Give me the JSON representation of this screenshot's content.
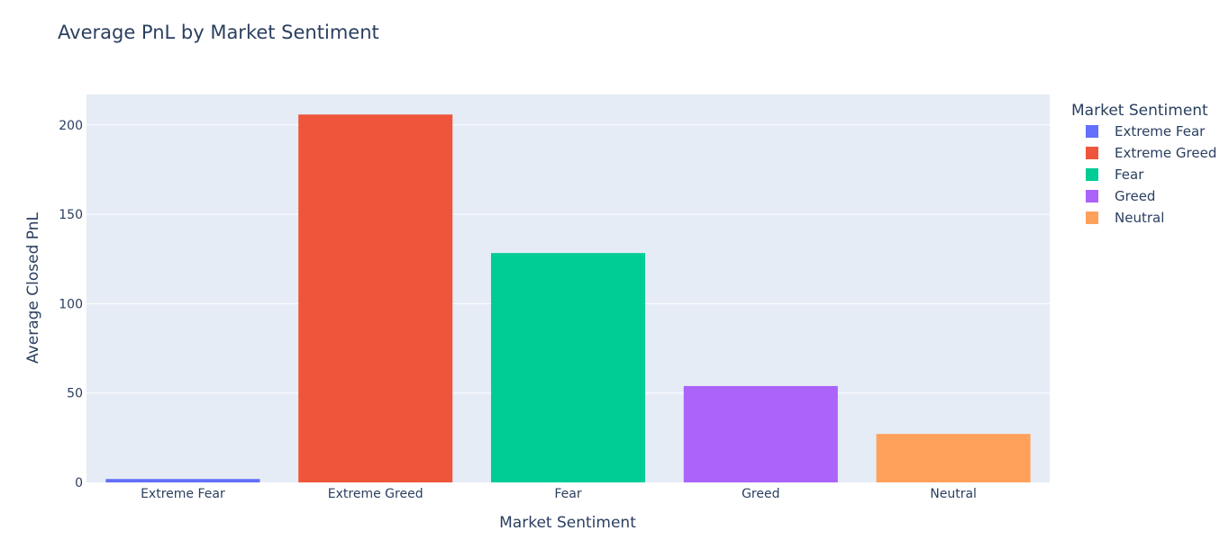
{
  "chart_data": {
    "type": "bar",
    "title": "Average PnL by Market Sentiment",
    "xlabel": "Market Sentiment",
    "ylabel": "Average Closed PnL",
    "categories": [
      "Extreme Fear",
      "Extreme Greed",
      "Fear",
      "Greed",
      "Neutral"
    ],
    "values": [
      1.9,
      205.8,
      128.3,
      53.9,
      27.1
    ],
    "colors": [
      "#636efa",
      "#ef553b",
      "#00cc96",
      "#ab63fa",
      "#ffa15a"
    ],
    "ylim": [
      0,
      217
    ],
    "yticks": [
      0,
      50,
      100,
      150,
      200
    ],
    "grid": true,
    "legend": {
      "title": "Market Sentiment",
      "position": "right",
      "items": [
        "Extreme Fear",
        "Extreme Greed",
        "Fear",
        "Greed",
        "Neutral"
      ]
    }
  }
}
